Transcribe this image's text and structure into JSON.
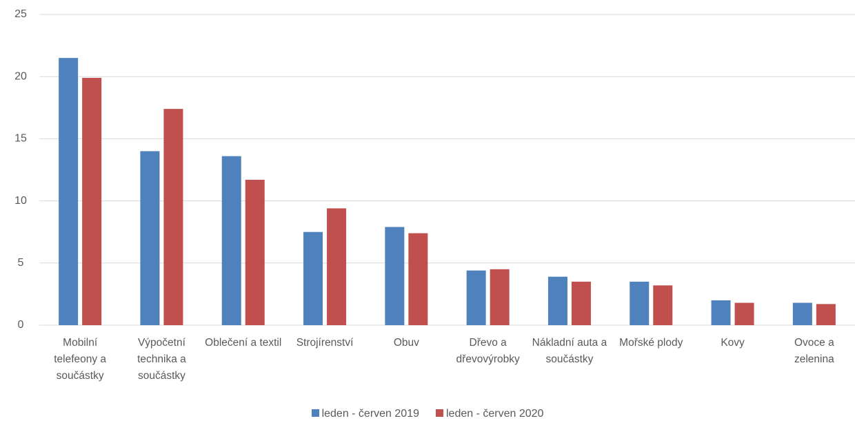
{
  "chart_data": {
    "type": "bar",
    "categories": [
      "Mobilní telefeony a součástky",
      "Výpočetní technika a součástky",
      "Oblečení a textil",
      "Strojírenství",
      "Obuv",
      "Dřevo a dřevovýrobky",
      "Nákladní auta a součástky",
      "Mořské plody",
      "Kovy",
      "Ovoce a zelenina"
    ],
    "series": [
      {
        "name": "leden - červen 2019",
        "color": "#4f81bd",
        "values": [
          21.5,
          14.0,
          13.6,
          7.5,
          7.9,
          4.4,
          3.9,
          3.5,
          2.0,
          1.8
        ]
      },
      {
        "name": "leden - červen 2020",
        "color": "#c0504d",
        "values": [
          19.9,
          17.4,
          11.7,
          9.4,
          7.4,
          4.5,
          3.5,
          3.2,
          1.8,
          1.7
        ]
      }
    ],
    "ylim": [
      0,
      25
    ],
    "yticks": [
      0,
      5,
      10,
      15,
      20,
      25
    ],
    "grid": true,
    "legend": "bottom"
  }
}
